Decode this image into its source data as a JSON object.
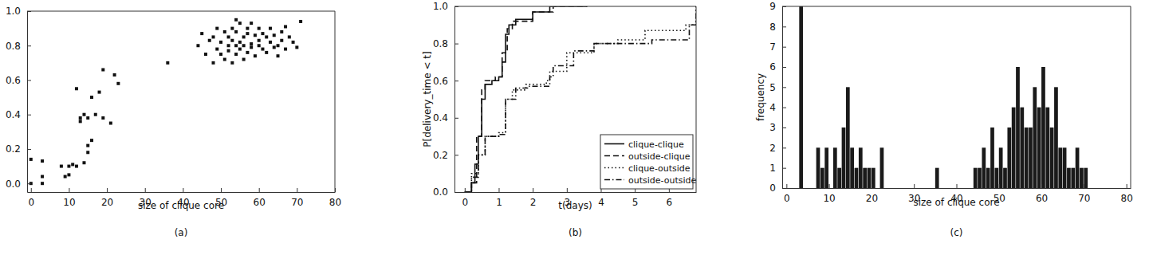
{
  "chart_data": [
    {
      "type": "scatter",
      "title": "(a)",
      "xlabel": "size of clique core",
      "x": [
        0,
        0,
        3,
        3,
        3,
        8,
        9,
        10,
        10,
        11,
        12,
        12,
        13,
        13,
        14,
        14,
        15,
        15,
        15,
        16,
        16,
        17,
        18,
        19,
        19,
        21,
        22,
        23,
        36,
        44,
        45,
        46,
        47,
        48,
        48,
        49,
        49,
        50,
        50,
        51,
        51,
        52,
        52,
        52,
        53,
        53,
        53,
        54,
        54,
        54,
        55,
        55,
        55,
        56,
        56,
        56,
        57,
        57,
        57,
        58,
        58,
        59,
        59,
        60,
        60,
        60,
        61,
        61,
        62,
        62,
        63,
        63,
        64,
        64,
        65,
        65,
        66,
        66,
        67,
        67,
        68,
        69,
        70,
        71,
        54,
        58
      ],
      "y": [
        0.0,
        0.14,
        0.13,
        0.0,
        0.04,
        0.1,
        0.04,
        0.05,
        0.1,
        0.11,
        0.1,
        0.55,
        0.36,
        0.38,
        0.12,
        0.4,
        0.18,
        0.22,
        0.38,
        0.25,
        0.5,
        0.4,
        0.53,
        0.66,
        0.38,
        0.35,
        0.63,
        0.58,
        0.7,
        0.8,
        0.87,
        0.75,
        0.83,
        0.85,
        0.7,
        0.9,
        0.78,
        0.82,
        0.75,
        0.88,
        0.72,
        0.8,
        0.85,
        0.77,
        0.83,
        0.7,
        0.9,
        0.8,
        0.75,
        0.88,
        0.82,
        0.78,
        0.93,
        0.85,
        0.72,
        0.8,
        0.87,
        0.76,
        0.9,
        0.81,
        0.79,
        0.86,
        0.74,
        0.83,
        0.8,
        0.9,
        0.78,
        0.87,
        0.85,
        0.76,
        0.82,
        0.9,
        0.79,
        0.86,
        0.8,
        0.74,
        0.88,
        0.83,
        0.91,
        0.78,
        0.85,
        0.82,
        0.79,
        0.94,
        0.95,
        0.93
      ],
      "color": "#111111",
      "marker": "square",
      "xlim": [
        -1,
        80
      ],
      "xticks": [
        0,
        10,
        20,
        30,
        40,
        50,
        60,
        70,
        80
      ],
      "ylim": [
        -0.05,
        1.0
      ],
      "yticks": [
        {
          "value": 0,
          "label": "0.0"
        },
        {
          "value": 0.2,
          "label": "0.2"
        },
        {
          "value": 0.4,
          "label": "0.4"
        },
        {
          "value": 0.6,
          "label": "0.6"
        },
        {
          "value": 0.8,
          "label": "0.8"
        },
        {
          "value": 1.0,
          "label": "1.0"
        }
      ],
      "grid": false
    },
    {
      "type": "line",
      "title": "(b)",
      "xlabel": "t(days)",
      "ylabel": "P[delivery_time < t]",
      "series": [
        {
          "name": "clique-clique",
          "color": "#111111",
          "line_style": "solid",
          "x": [
            0,
            0.2,
            0.3,
            0.4,
            0.5,
            0.6,
            0.8,
            1.0,
            1.1,
            1.2,
            1.3,
            1.5,
            2.0,
            2.5,
            2.7,
            3.6
          ],
          "values": [
            0,
            0.05,
            0.15,
            0.3,
            0.5,
            0.58,
            0.6,
            0.62,
            0.7,
            0.85,
            0.9,
            0.93,
            0.97,
            1.0,
            1.0,
            1.0
          ]
        },
        {
          "name": "outside-clique",
          "color": "#111111",
          "line_style": "dashed",
          "x": [
            0,
            0.2,
            0.35,
            0.5,
            0.6,
            0.9,
            1.1,
            1.25,
            1.4,
            2.0,
            2.6,
            3.6
          ],
          "values": [
            0,
            0.05,
            0.3,
            0.55,
            0.6,
            0.62,
            0.75,
            0.88,
            0.92,
            0.97,
            1.0,
            1.0
          ]
        },
        {
          "name": "clique-outside",
          "color": "#111111",
          "line_style": "dotted",
          "x": [
            0,
            0.2,
            0.4,
            0.6,
            1.0,
            1.2,
            1.4,
            1.8,
            2.4,
            2.5,
            3.0,
            3.8,
            4.5,
            5.3,
            6.5,
            6.8
          ],
          "values": [
            0,
            0.1,
            0.2,
            0.3,
            0.32,
            0.5,
            0.55,
            0.58,
            0.6,
            0.65,
            0.75,
            0.8,
            0.82,
            0.87,
            0.9,
            1.0
          ]
        },
        {
          "name": "outside-outside",
          "color": "#111111",
          "line_style": "dashdot",
          "x": [
            0,
            0.2,
            0.4,
            0.6,
            1.0,
            1.2,
            1.5,
            1.9,
            2.5,
            2.6,
            3.2,
            3.8,
            4.5,
            5.5,
            6.6,
            6.8
          ],
          "values": [
            0,
            0.08,
            0.2,
            0.3,
            0.31,
            0.5,
            0.56,
            0.57,
            0.62,
            0.68,
            0.76,
            0.8,
            0.8,
            0.82,
            0.9,
            1.0
          ]
        }
      ],
      "xlim": [
        -0.3,
        6.8
      ],
      "xticks": [
        0,
        1,
        2,
        3,
        4,
        5,
        6
      ],
      "ylim": [
        0,
        1.0
      ],
      "yticks": [
        {
          "value": 0,
          "label": "0.0"
        },
        {
          "value": 0.2,
          "label": "0.2"
        },
        {
          "value": 0.4,
          "label": "0.4"
        },
        {
          "value": 0.6,
          "label": "0.6"
        },
        {
          "value": 0.8,
          "label": "0.8"
        },
        {
          "value": 1.0,
          "label": "1.0"
        }
      ],
      "legend": "lower right",
      "grid": false
    },
    {
      "type": "histogram",
      "title": "(c)",
      "xlabel": "size of clique core",
      "ylabel": "frequency",
      "bins": [
        0,
        1,
        2,
        3,
        4,
        5,
        6,
        7,
        8,
        9,
        10,
        11,
        12,
        13,
        14,
        15,
        16,
        17,
        18,
        19,
        20,
        21,
        22,
        23,
        24,
        25,
        26,
        27,
        28,
        29,
        30,
        31,
        32,
        33,
        34,
        35,
        36,
        37,
        38,
        39,
        40,
        41,
        42,
        43,
        44,
        45,
        46,
        47,
        48,
        49,
        50,
        51,
        52,
        53,
        54,
        55,
        56,
        57,
        58,
        59,
        60,
        61,
        62,
        63,
        64,
        65,
        66,
        67,
        68,
        69,
        70,
        71
      ],
      "counts": [
        0,
        0,
        0,
        9,
        0,
        0,
        0,
        2,
        1,
        2,
        0,
        2,
        1,
        3,
        5,
        2,
        1,
        2,
        1,
        1,
        1,
        0,
        2,
        0,
        0,
        0,
        0,
        0,
        0,
        0,
        0,
        0,
        0,
        0,
        0,
        1,
        0,
        0,
        0,
        0,
        0,
        0,
        0,
        0,
        1,
        1,
        2,
        1,
        3,
        1,
        2,
        1,
        3,
        4,
        6,
        4,
        3,
        3,
        5,
        4,
        6,
        4,
        3,
        5,
        2,
        2,
        1,
        1,
        2,
        1,
        1
      ],
      "color": "#1a1a1a",
      "xlim": [
        -1,
        81
      ],
      "xticks": [
        0,
        10,
        20,
        30,
        40,
        50,
        60,
        70,
        80
      ],
      "ylim": [
        0,
        9
      ],
      "yticks": [
        0,
        1,
        2,
        3,
        4,
        5,
        6,
        7,
        8,
        9
      ],
      "grid": false
    }
  ]
}
